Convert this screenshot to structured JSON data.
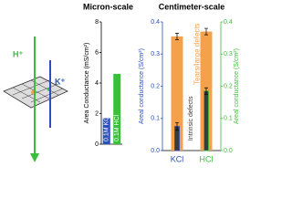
{
  "diagram": {
    "labels": [
      "H⁺",
      "K⁺"
    ]
  },
  "chart_data": [
    {
      "type": "bar",
      "title": "Micron-scale",
      "ylabel": "Area Conductance (mS/cm²)",
      "categories": [
        "0.1M KCl",
        "0.1M HCl"
      ],
      "values": [
        1.7,
        4.6
      ],
      "colors": [
        "#2b4fbf",
        "#3bbf3b"
      ],
      "ylim": [
        0,
        8
      ],
      "yticks": [
        0,
        2,
        4,
        6,
        8
      ]
    },
    {
      "type": "overlay-bar",
      "title": "Centimeter-scale",
      "ylabel": "Areal conductance (S/cm²)",
      "y2label": "Areal conductance (S/cm²)",
      "categories": [
        "KCl",
        "HCl"
      ],
      "category_colors": [
        "#2b4fbf",
        "#3bbf3b"
      ],
      "series": [
        {
          "name": "Tears/large defects",
          "color": "#f5a04a",
          "values": [
            0.355,
            0.37
          ],
          "errors": [
            0.01,
            0.01
          ]
        },
        {
          "name": "Intrinsic defects",
          "color": "#3a3a3a",
          "values": [
            0.075,
            0.185
          ],
          "errors": [
            0.012,
            0.01
          ]
        }
      ],
      "ylim": [
        0,
        0.4
      ],
      "yticks": [
        {
          "value": 0,
          "label": "0.0"
        },
        0.1,
        0.2,
        0.3,
        0.4
      ],
      "y2lim": [
        0,
        0.4
      ],
      "y2ticks": [
        {
          "value": 0,
          "label": "0.0"
        },
        0.1,
        0.2,
        0.3,
        0.4
      ],
      "axis_color": "#2b4fbf",
      "axis2_color": "#3bbf3b"
    }
  ]
}
